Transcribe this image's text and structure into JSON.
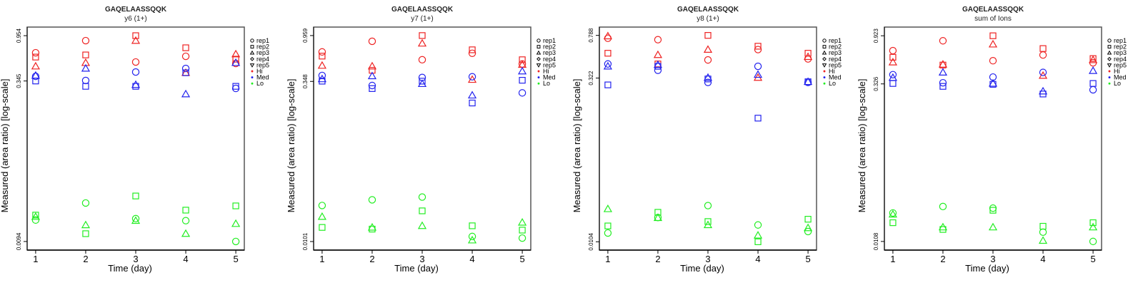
{
  "colors": {
    "Hi": "#ee2222",
    "Med": "#2222ee",
    "Lo": "#22ee22",
    "axis": "#000000",
    "box": "#555555"
  },
  "legend_items": [
    {
      "label": "rep1",
      "symbol": "circle"
    },
    {
      "label": "rep2",
      "symbol": "square"
    },
    {
      "label": "rep3",
      "symbol": "triangle-up"
    },
    {
      "label": "rep4",
      "symbol": "diamond"
    },
    {
      "label": "rep5",
      "symbol": "triangle-down"
    },
    {
      "label": "Hi",
      "symbol": "dot",
      "color_key": "Hi"
    },
    {
      "label": "Med",
      "symbol": "dot",
      "color_key": "Med"
    },
    {
      "label": "Lo",
      "symbol": "dot",
      "color_key": "Lo"
    }
  ],
  "chart_data": [
    {
      "type": "scatter",
      "title": "GAQELAASSQQK",
      "subtitle": "y6 (1+)",
      "xlabel": "Time (day)",
      "ylabel": "Measured (area ratio) [log-scale]",
      "yscale": "log",
      "ylim": [
        0.00775,
        1.157
      ],
      "xlim": [
        0.83,
        5.17
      ],
      "x_ticks": [
        "1",
        "2",
        "3",
        "4",
        "5"
      ],
      "y_ticks": [
        {
          "value": 0.954,
          "label": "0.954"
        },
        {
          "value": 0.345,
          "label": "0.345"
        },
        {
          "value": 0.0094,
          "label": "0.0094"
        }
      ],
      "legend": "right",
      "series": [
        {
          "group": "Hi",
          "rep": "rep1",
          "x": [
            1,
            2,
            3,
            4,
            5
          ],
          "y": [
            0.65,
            0.853,
            0.528,
            0.6,
            0.511
          ]
        },
        {
          "group": "Hi",
          "rep": "rep2",
          "x": [
            1,
            2,
            3,
            4,
            5
          ],
          "y": [
            0.59,
            0.619,
            0.954,
            0.727,
            0.563
          ]
        },
        {
          "group": "Hi",
          "rep": "rep3",
          "x": [
            1,
            2,
            3,
            4,
            5
          ],
          "y": [
            0.48,
            0.519,
            0.853,
            0.415,
            0.63
          ]
        },
        {
          "group": "Med",
          "rep": "rep1",
          "x": [
            1,
            2,
            3,
            4,
            5
          ],
          "y": [
            0.383,
            0.349,
            0.422,
            0.457,
            0.292
          ]
        },
        {
          "group": "Med",
          "rep": "rep2",
          "x": [
            1,
            2,
            3,
            4,
            5
          ],
          "y": [
            0.345,
            0.306,
            0.306,
            0.415,
            0.306
          ]
        },
        {
          "group": "Med",
          "rep": "rep3",
          "x": [
            1,
            2,
            3,
            4,
            5
          ],
          "y": [
            0.39,
            0.457,
            0.317,
            0.257,
            0.519
          ]
        },
        {
          "group": "Lo",
          "rep": "rep1",
          "x": [
            1,
            2,
            3,
            4,
            5
          ],
          "y": [
            0.0152,
            0.0223,
            0.0157,
            0.015,
            0.0094
          ]
        },
        {
          "group": "Lo",
          "rep": "rep2",
          "x": [
            1,
            2,
            3,
            4,
            5
          ],
          "y": [
            0.017,
            0.0112,
            0.0261,
            0.019,
            0.0209
          ]
        },
        {
          "group": "Lo",
          "rep": "rep3",
          "x": [
            1,
            2,
            3,
            4,
            5
          ],
          "y": [
            0.0164,
            0.0136,
            0.015,
            0.0112,
            0.014
          ]
        }
      ]
    },
    {
      "type": "scatter",
      "title": "GAQELAASSQQK",
      "subtitle": "y7 (1+)",
      "xlabel": "Time (day)",
      "ylabel": "Measured (area ratio) [log-scale]",
      "yscale": "log",
      "ylim": [
        0.00836,
        1.157
      ],
      "xlim": [
        0.83,
        5.17
      ],
      "x_ticks": [
        "1",
        "2",
        "3",
        "4",
        "5"
      ],
      "y_ticks": [
        {
          "value": 0.959,
          "label": "0.959"
        },
        {
          "value": 0.348,
          "label": "0.348"
        },
        {
          "value": 0.0101,
          "label": "0.0101"
        }
      ],
      "legend": "right",
      "series": [
        {
          "group": "Hi",
          "rep": "rep1",
          "x": [
            1,
            2,
            3,
            4,
            5
          ],
          "y": [
            0.668,
            0.845,
            0.562,
            0.648,
            0.512
          ]
        },
        {
          "group": "Hi",
          "rep": "rep2",
          "x": [
            1,
            2,
            3,
            4,
            5
          ],
          "y": [
            0.609,
            0.445,
            0.959,
            0.7,
            0.562
          ]
        },
        {
          "group": "Hi",
          "rep": "rep3",
          "x": [
            1,
            2,
            3,
            4,
            5
          ],
          "y": [
            0.494,
            0.487,
            0.807,
            0.362,
            0.504
          ]
        },
        {
          "group": "Med",
          "rep": "rep1",
          "x": [
            1,
            2,
            3,
            4,
            5
          ],
          "y": [
            0.397,
            0.318,
            0.38,
            0.386,
            0.27
          ]
        },
        {
          "group": "Med",
          "rep": "rep2",
          "x": [
            1,
            2,
            3,
            4,
            5
          ],
          "y": [
            0.35,
            0.297,
            0.35,
            0.216,
            0.357
          ]
        },
        {
          "group": "Med",
          "rep": "rep3",
          "x": [
            1,
            2,
            3,
            4,
            5
          ],
          "y": [
            0.367,
            0.392,
            0.33,
            0.256,
            0.436
          ]
        },
        {
          "group": "Lo",
          "rep": "rep1",
          "x": [
            1,
            2,
            3,
            4,
            5
          ],
          "y": [
            0.0224,
            0.0254,
            0.027,
            0.0113,
            0.0109
          ]
        },
        {
          "group": "Lo",
          "rep": "rep2",
          "x": [
            1,
            2,
            3,
            4,
            5
          ],
          "y": [
            0.0138,
            0.0133,
            0.0199,
            0.0143,
            0.013
          ]
        },
        {
          "group": "Lo",
          "rep": "rep3",
          "x": [
            1,
            2,
            3,
            4,
            5
          ],
          "y": [
            0.0175,
            0.0138,
            0.0143,
            0.0104,
            0.0154
          ]
        }
      ]
    },
    {
      "type": "scatter",
      "title": "GAQELAASSQQK",
      "subtitle": "y8 (1+)",
      "xlabel": "Time (day)",
      "ylabel": "Measured (area ratio) [log-scale]",
      "yscale": "log",
      "ylim": [
        0.00874,
        0.938
      ],
      "xlim": [
        0.83,
        5.17
      ],
      "x_ticks": [
        "1",
        "2",
        "3",
        "4",
        "5"
      ],
      "y_ticks": [
        {
          "value": 0.788,
          "label": "0.788"
        },
        {
          "value": 0.322,
          "label": "0.322"
        },
        {
          "value": 0.0104,
          "label": "0.0104"
        }
      ],
      "legend": "right",
      "series": [
        {
          "group": "Hi",
          "rep": "rep1",
          "x": [
            1,
            2,
            3,
            4,
            5
          ],
          "y": [
            0.742,
            0.72,
            0.471,
            0.585,
            0.481
          ]
        },
        {
          "group": "Hi",
          "rep": "rep2",
          "x": [
            1,
            2,
            3,
            4,
            5
          ],
          "y": [
            0.542,
            0.433,
            0.788,
            0.628,
            0.542
          ]
        },
        {
          "group": "Hi",
          "rep": "rep3",
          "x": [
            1,
            2,
            3,
            4,
            5
          ],
          "y": [
            0.776,
            0.524,
            0.585,
            0.325,
            0.503
          ]
        },
        {
          "group": "Med",
          "rep": "rep1",
          "x": [
            1,
            2,
            3,
            4,
            5
          ],
          "y": [
            0.433,
            0.379,
            0.294,
            0.412,
            0.294
          ]
        },
        {
          "group": "Med",
          "rep": "rep2",
          "x": [
            1,
            2,
            3,
            4,
            5
          ],
          "y": [
            0.279,
            0.412,
            0.316,
            0.139,
            0.298
          ]
        },
        {
          "group": "Med",
          "rep": "rep3",
          "x": [
            1,
            2,
            3,
            4,
            5
          ],
          "y": [
            0.412,
            0.425,
            0.325,
            0.346,
            0.298
          ]
        },
        {
          "group": "Lo",
          "rep": "rep1",
          "x": [
            1,
            2,
            3,
            4,
            5
          ],
          "y": [
            0.0125,
            0.0173,
            0.0222,
            0.0148,
            0.0129
          ]
        },
        {
          "group": "Lo",
          "rep": "rep2",
          "x": [
            1,
            2,
            3,
            4,
            5
          ],
          "y": [
            0.0145,
            0.0193,
            0.0159,
            0.0104,
            0.0167
          ]
        },
        {
          "group": "Lo",
          "rep": "rep3",
          "x": [
            1,
            2,
            3,
            4,
            5
          ],
          "y": [
            0.0207,
            0.0172,
            0.0148,
            0.0119,
            0.0139
          ]
        }
      ]
    },
    {
      "type": "scatter",
      "title": "GAQELAASSQQK",
      "subtitle": "sum of Ions",
      "xlabel": "Time (day)",
      "ylabel": "Measured (area ratio) [log-scale]",
      "yscale": "log",
      "ylim": [
        0.00896,
        1.114
      ],
      "xlim": [
        0.83,
        5.17
      ],
      "x_ticks": [
        "1",
        "2",
        "3",
        "4",
        "5"
      ],
      "y_ticks": [
        {
          "value": 0.923,
          "label": "0.923"
        },
        {
          "value": 0.326,
          "label": "0.326"
        },
        {
          "value": 0.0108,
          "label": "0.0108"
        }
      ],
      "legend": "right",
      "series": [
        {
          "group": "Hi",
          "rep": "rep1",
          "x": [
            1,
            2,
            3,
            4,
            5
          ],
          "y": [
            0.669,
            0.828,
            0.538,
            0.609,
            0.514
          ]
        },
        {
          "group": "Hi",
          "rep": "rep2",
          "x": [
            1,
            2,
            3,
            4,
            5
          ],
          "y": [
            0.58,
            0.49,
            0.923,
            0.7,
            0.564
          ]
        },
        {
          "group": "Hi",
          "rep": "rep3",
          "x": [
            1,
            2,
            3,
            4,
            5
          ],
          "y": [
            0.521,
            0.497,
            0.768,
            0.39,
            0.547
          ]
        },
        {
          "group": "Med",
          "rep": "rep1",
          "x": [
            1,
            2,
            3,
            4,
            5
          ],
          "y": [
            0.398,
            0.334,
            0.378,
            0.418,
            0.287
          ]
        },
        {
          "group": "Med",
          "rep": "rep2",
          "x": [
            1,
            2,
            3,
            4,
            5
          ],
          "y": [
            0.329,
            0.309,
            0.323,
            0.262,
            0.329
          ]
        },
        {
          "group": "Med",
          "rep": "rep3",
          "x": [
            1,
            2,
            3,
            4,
            5
          ],
          "y": [
            0.373,
            0.418,
            0.329,
            0.278,
            0.433
          ]
        },
        {
          "group": "Lo",
          "rep": "rep1",
          "x": [
            1,
            2,
            3,
            4,
            5
          ],
          "y": [
            0.02,
            0.023,
            0.0222,
            0.0132,
            0.0108
          ]
        },
        {
          "group": "Lo",
          "rep": "rep2",
          "x": [
            1,
            2,
            3,
            4,
            5
          ],
          "y": [
            0.0162,
            0.014,
            0.0212,
            0.015,
            0.0162
          ]
        },
        {
          "group": "Lo",
          "rep": "rep3",
          "x": [
            1,
            2,
            3,
            4,
            5
          ],
          "y": [
            0.0194,
            0.0147,
            0.0147,
            0.011,
            0.0147
          ]
        }
      ]
    }
  ]
}
